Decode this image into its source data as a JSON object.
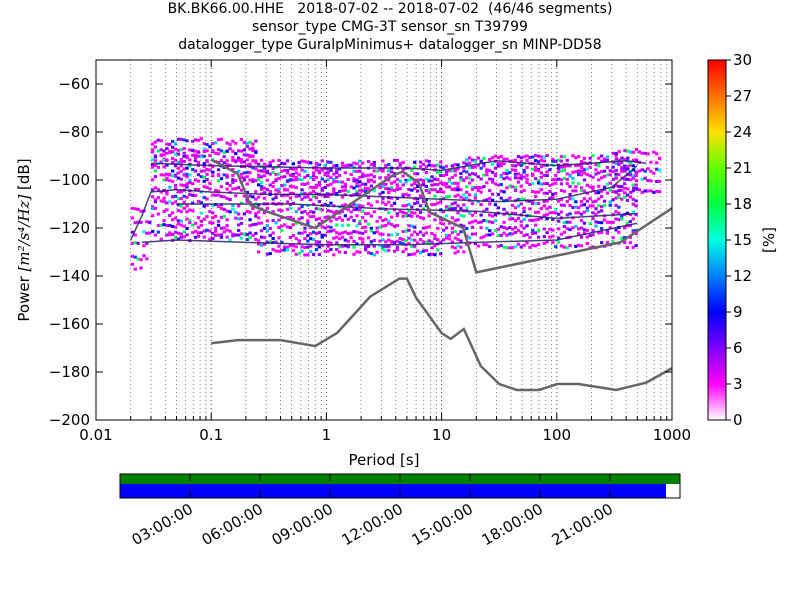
{
  "chart_data": {
    "type": "heatmap",
    "title_lines": [
      "BK.BK66.00.HHE   2018-07-02 -- 2018-07-02  (46/46 segments)",
      "sensor_type CMG-3T sensor_sn T39799",
      "datalogger_type GuralpMinimus+ datalogger_sn MINP-DD58"
    ],
    "xlabel": "Period [s]",
    "ylabel_prefix": "Power ",
    "ylabel_units": "[m²/s⁴/Hz]",
    "ylabel_suffix": " [dB]",
    "x_scale": "log",
    "xlim": [
      0.01,
      1000
    ],
    "ylim": [
      -200,
      -50
    ],
    "x_ticks": [
      {
        "value": 0.01,
        "label": "0.01"
      },
      {
        "value": 0.1,
        "label": "0.1"
      },
      {
        "value": 1,
        "label": "1"
      },
      {
        "value": 10,
        "label": "10"
      },
      {
        "value": 100,
        "label": "100"
      },
      {
        "value": 1000,
        "label": "1000"
      }
    ],
    "y_ticks": [
      {
        "value": -60,
        "label": "−60"
      },
      {
        "value": -80,
        "label": "−80"
      },
      {
        "value": -100,
        "label": "−100"
      },
      {
        "value": -120,
        "label": "−120"
      },
      {
        "value": -140,
        "label": "−140"
      },
      {
        "value": -160,
        "label": "−160"
      },
      {
        "value": -180,
        "label": "−180"
      },
      {
        "value": -200,
        "label": "−200"
      }
    ],
    "grid": "dotted, x only",
    "colorbar": {
      "label": "[%]",
      "range": [
        0,
        30
      ],
      "ticks": [
        {
          "value": 0,
          "label": "0"
        },
        {
          "value": 3,
          "label": "3"
        },
        {
          "value": 6,
          "label": "6"
        },
        {
          "value": 9,
          "label": "9"
        },
        {
          "value": 12,
          "label": "12"
        },
        {
          "value": 15,
          "label": "15"
        },
        {
          "value": 18,
          "label": "18"
        },
        {
          "value": 21,
          "label": "21"
        },
        {
          "value": 24,
          "label": "24"
        },
        {
          "value": 27,
          "label": "27"
        },
        {
          "value": 30,
          "label": "30"
        }
      ]
    },
    "psd_bands": [
      {
        "x_start": 0.02,
        "x_end": 0.03,
        "levels": [
          -112,
          -117,
          -122,
          -127,
          -132,
          -136
        ]
      },
      {
        "x_start": 0.03,
        "x_end": 0.25,
        "levels": [
          -84,
          -87,
          -89,
          -91,
          -93,
          -95,
          -97,
          -99,
          -101,
          -104,
          -107,
          -110,
          -113,
          -116,
          -119,
          -122,
          -124
        ]
      },
      {
        "x_start": 0.25,
        "x_end": 16,
        "levels": [
          -93,
          -95,
          -97,
          -99,
          -101,
          -103,
          -105,
          -107,
          -110,
          -113,
          -116,
          -119,
          -122,
          -125,
          -127,
          -130
        ]
      },
      {
        "x_start": 16,
        "x_end": 500,
        "levels": [
          -91,
          -93,
          -95,
          -97,
          -99,
          -102,
          -105,
          -108,
          -111,
          -114,
          -117,
          -120,
          -123,
          -127
        ]
      },
      {
        "x_start": 300,
        "x_end": 800,
        "levels": [
          -88,
          -92,
          -96,
          -100,
          -104
        ]
      }
    ],
    "series": [
      {
        "role": "mode",
        "x": [
          0.02,
          0.025,
          0.03,
          0.05,
          0.1,
          0.3,
          1,
          3,
          10,
          30,
          100,
          300,
          500
        ],
        "y": [
          -125,
          -115,
          -105,
          -104,
          -105,
          -106,
          -106,
          -107,
          -108,
          -109,
          -108,
          -103,
          -94
        ]
      },
      {
        "role": "mode",
        "x": [
          0.025,
          0.05,
          0.2,
          1,
          5,
          20,
          100,
          500
        ],
        "y": [
          -126,
          -125,
          -126,
          -127,
          -127,
          -126,
          -125,
          -118
        ]
      },
      {
        "role": "mode",
        "x": [
          0.03,
          0.1,
          1,
          5,
          10,
          30,
          100,
          400,
          600
        ],
        "y": [
          -93,
          -94,
          -95,
          -95,
          -96,
          -92,
          -94,
          -92,
          -93
        ]
      },
      {
        "role": "mode",
        "x": [
          0.05,
          0.5,
          3,
          20,
          100,
          500
        ],
        "y": [
          -110,
          -110,
          -112,
          -113,
          -116,
          -114
        ]
      },
      {
        "role": "noise_model",
        "x": [
          0.1,
          0.17,
          0.4,
          0.8,
          1.24,
          2.4,
          4.3,
          5,
          6,
          10,
          12,
          15.6,
          21.9,
          31.6,
          45,
          70,
          101,
          154,
          328,
          600,
          10000
        ],
        "y": [
          -168,
          -166.7,
          -166.7,
          -169.2,
          -163.7,
          -148.6,
          -141.1,
          -141.1,
          -149,
          -163.8,
          -166.2,
          -162.1,
          -177.5,
          -185,
          -187.5,
          -187.5,
          -185,
          -185,
          -187.5,
          -184.4,
          -151.5
        ]
      },
      {
        "role": "noise_model",
        "x": [
          0.1,
          0.17,
          0.22,
          0.32,
          0.8,
          3.8,
          4.6,
          6.3,
          7.9,
          15.4,
          20,
          354.8,
          10000
        ],
        "y": [
          -91.5,
          -97.4,
          -110.5,
          -113.5,
          -120,
          -98,
          -96.5,
          -101,
          -113.5,
          -120,
          -138.5,
          -126,
          -80.1
        ]
      }
    ]
  },
  "timeline": {
    "ticks": [
      {
        "hour": 3,
        "label": "03:00:00"
      },
      {
        "hour": 6,
        "label": "06:00:00"
      },
      {
        "hour": 9,
        "label": "09:00:00"
      },
      {
        "hour": 12,
        "label": "12:00:00"
      },
      {
        "hour": 15,
        "label": "15:00:00"
      },
      {
        "hour": 18,
        "label": "18:00:00"
      },
      {
        "hour": 21,
        "label": "21:00:00"
      }
    ],
    "range_hours": [
      0,
      24
    ],
    "data_coverage_hours": [
      0,
      24
    ],
    "used_coverage_hours": [
      0,
      23.4
    ],
    "colors": {
      "available": "#008000",
      "used": "#0000ff"
    }
  }
}
